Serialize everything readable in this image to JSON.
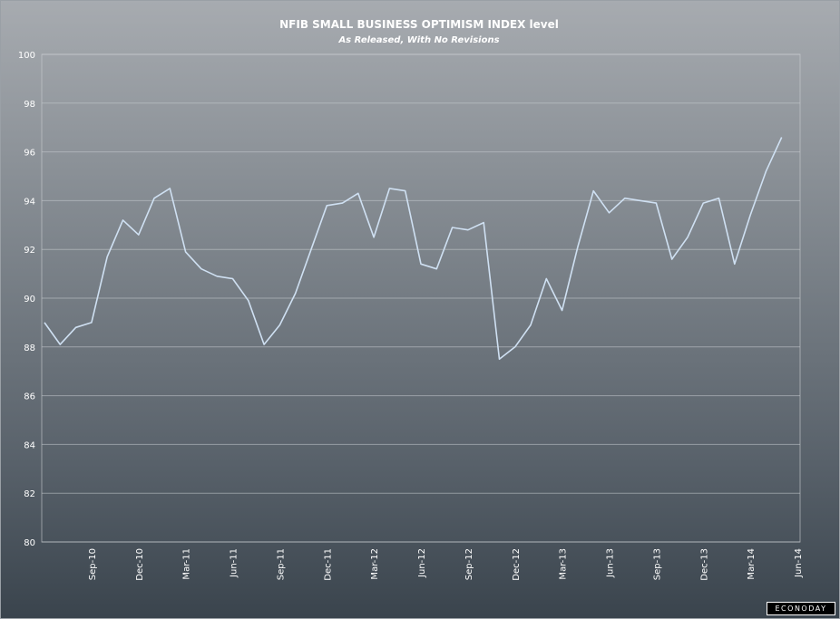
{
  "chart_data": {
    "type": "line",
    "title": "NFIB SMALL BUSINESS OPTIMISM INDEX level",
    "subtitle": "As Released, With No Revisions",
    "xlabel": "",
    "ylabel": "",
    "ylim": [
      80,
      100
    ],
    "yticks": [
      80,
      82,
      84,
      86,
      88,
      90,
      92,
      94,
      96,
      98,
      100
    ],
    "grid": true,
    "legend": "none",
    "line_color": "#cfe0f2",
    "x": [
      "Jun-10",
      "Jul-10",
      "Aug-10",
      "Sep-10",
      "Oct-10",
      "Nov-10",
      "Dec-10",
      "Jan-11",
      "Feb-11",
      "Mar-11",
      "Apr-11",
      "May-11",
      "Jun-11",
      "Jul-11",
      "Aug-11",
      "Sep-11",
      "Oct-11",
      "Nov-11",
      "Dec-11",
      "Jan-12",
      "Feb-12",
      "Mar-12",
      "Apr-12",
      "May-12",
      "Jun-12",
      "Jul-12",
      "Aug-12",
      "Sep-12",
      "Oct-12",
      "Nov-12",
      "Dec-12",
      "Jan-13",
      "Feb-13",
      "Mar-13",
      "Apr-13",
      "May-13",
      "Jun-13",
      "Jul-13",
      "Aug-13",
      "Sep-13",
      "Oct-13",
      "Nov-13",
      "Dec-13",
      "Jan-14",
      "Feb-14",
      "Mar-14",
      "Apr-14",
      "May-14",
      "Jun-14"
    ],
    "xtick_labels": [
      "Sep-10",
      "Dec-10",
      "Mar-11",
      "Jun-11",
      "Sep-11",
      "Dec-11",
      "Mar-12",
      "Jun-12",
      "Sep-12",
      "Dec-12",
      "Mar-13",
      "Jun-13",
      "Sep-13",
      "Dec-13",
      "Mar-14",
      "Jun-14"
    ],
    "series": [
      {
        "values": [
          89.0,
          88.1,
          88.8,
          89.0,
          91.7,
          93.2,
          92.6,
          94.1,
          94.5,
          91.9,
          91.2,
          90.9,
          90.8,
          89.9,
          88.1,
          88.9,
          90.2,
          92.0,
          93.8,
          93.9,
          94.3,
          92.5,
          94.5,
          94.4,
          91.4,
          91.2,
          92.9,
          92.8,
          93.1,
          87.5,
          88.0,
          88.9,
          90.8,
          89.5,
          92.1,
          94.4,
          93.5,
          94.1,
          94.0,
          93.9,
          91.6,
          92.5,
          93.9,
          94.1,
          91.4,
          93.4,
          95.2,
          96.6,
          null
        ]
      }
    ]
  },
  "branding": {
    "logo_text": "ECONODAY"
  }
}
